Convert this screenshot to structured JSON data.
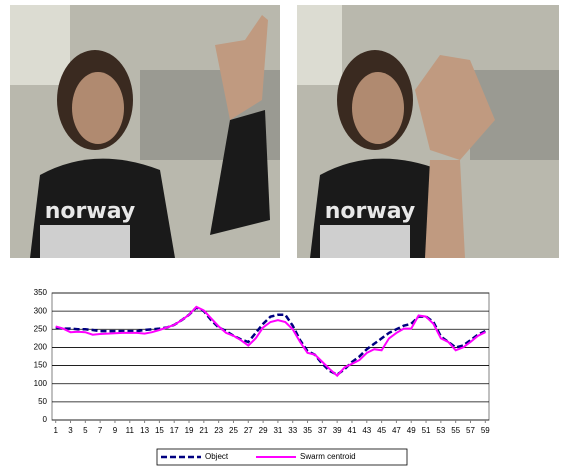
{
  "images": [
    {
      "shirt_text": "norway"
    },
    {
      "shirt_text": "norway"
    }
  ],
  "chart_data": {
    "type": "line",
    "x": [
      1,
      2,
      3,
      4,
      5,
      6,
      7,
      8,
      9,
      10,
      11,
      12,
      13,
      14,
      15,
      16,
      17,
      18,
      19,
      20,
      21,
      22,
      23,
      24,
      25,
      26,
      27,
      28,
      29,
      30,
      31,
      32,
      33,
      34,
      35,
      36,
      37,
      38,
      39,
      40,
      41,
      42,
      43,
      44,
      45,
      46,
      47,
      48,
      49,
      50,
      51,
      52,
      53,
      54,
      55,
      56,
      57,
      58,
      59
    ],
    "xlim": [
      0.5,
      59.5
    ],
    "xticks": [
      1,
      3,
      5,
      7,
      9,
      11,
      13,
      15,
      17,
      19,
      21,
      23,
      25,
      27,
      29,
      31,
      33,
      35,
      37,
      39,
      41,
      43,
      45,
      47,
      49,
      51,
      53,
      55,
      57,
      59
    ],
    "ylim": [
      0,
      350
    ],
    "yticks": [
      0,
      50,
      100,
      150,
      200,
      250,
      300,
      350
    ],
    "grid": true,
    "legend": "bottom",
    "series": [
      {
        "name": "Object",
        "color": "#000080",
        "dashed": true,
        "values": [
          255,
          252,
          252,
          250,
          250,
          248,
          245,
          245,
          245,
          245,
          245,
          245,
          248,
          250,
          252,
          255,
          262,
          275,
          290,
          310,
          300,
          275,
          255,
          245,
          232,
          222,
          215,
          240,
          265,
          285,
          290,
          290,
          260,
          220,
          190,
          180,
          155,
          135,
          125,
          140,
          160,
          175,
          195,
          210,
          225,
          240,
          250,
          260,
          265,
          285,
          285,
          270,
          230,
          215,
          200,
          205,
          220,
          235,
          245
        ]
      },
      {
        "name": "Swarm centroid",
        "color": "#ff00ff",
        "dashed": false,
        "values": [
          258,
          252,
          242,
          243,
          242,
          235,
          237,
          238,
          239,
          240,
          240,
          240,
          238,
          242,
          248,
          255,
          262,
          275,
          290,
          312,
          302,
          280,
          258,
          240,
          232,
          220,
          205,
          225,
          255,
          270,
          275,
          270,
          250,
          215,
          185,
          180,
          160,
          140,
          122,
          145,
          155,
          165,
          185,
          195,
          192,
          225,
          240,
          252,
          252,
          288,
          285,
          265,
          225,
          215,
          192,
          200,
          215,
          232,
          242
        ]
      }
    ]
  }
}
